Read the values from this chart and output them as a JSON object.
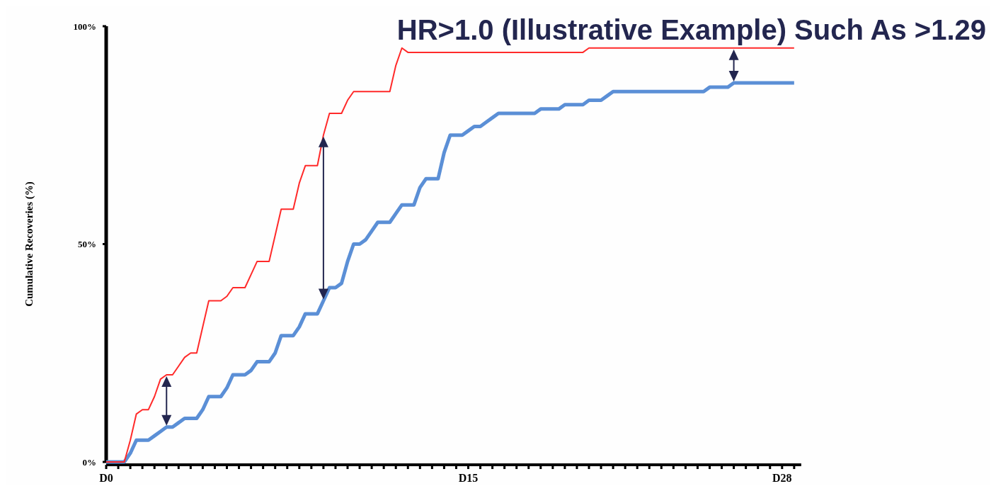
{
  "chart_data": {
    "type": "line",
    "title": "HR>1.0 (Illustrative Example) Such As >1.29",
    "ylabel": "Cumulative Recoveries (%)",
    "categories": [
      "D0",
      null,
      null,
      null,
      null,
      null,
      null,
      null,
      null,
      null,
      null,
      null,
      null,
      null,
      null,
      null,
      null,
      null,
      null,
      null,
      null,
      null,
      null,
      null,
      null,
      null,
      null,
      null,
      null,
      null,
      null,
      null,
      null,
      null,
      null,
      null,
      null,
      null,
      null,
      null,
      null,
      null,
      null,
      null,
      null,
      null,
      null,
      null,
      null,
      null,
      null,
      null,
      null,
      null,
      null,
      null,
      null,
      null,
      null,
      null,
      "D15",
      null,
      null,
      null,
      null,
      null,
      null,
      null,
      null,
      null,
      null,
      null,
      null,
      null,
      null,
      null,
      null,
      null,
      null,
      null,
      null,
      null,
      null,
      null,
      null,
      null,
      null,
      null,
      null,
      null,
      null,
      null,
      null,
      null,
      null,
      null,
      null,
      null,
      null,
      null,
      null,
      null,
      null,
      null,
      null,
      null,
      null,
      null,
      null,
      null,
      null,
      null,
      "D28",
      null,
      null
    ],
    "ylim": [
      0,
      100
    ],
    "yticks": [
      {
        "value": 0,
        "label": "0%"
      },
      {
        "value": 50,
        "label": "50%"
      },
      {
        "value": 100,
        "label": "100%"
      }
    ],
    "grid": false,
    "marker": "none",
    "line_style": "solid",
    "series": [
      {
        "color": "#ff2a2a",
        "values": [
          0,
          0,
          0,
          0,
          5,
          11,
          12,
          12,
          15,
          19,
          20,
          20,
          22,
          24,
          25,
          25,
          31,
          37,
          37,
          37,
          38,
          40,
          40,
          40,
          43,
          46,
          46,
          46,
          52,
          58,
          58,
          58,
          64,
          68,
          68,
          68,
          75,
          80,
          80,
          80,
          83,
          85,
          85,
          85,
          85,
          85,
          85,
          85,
          91,
          95,
          94,
          94,
          94,
          94,
          94,
          94,
          94,
          94,
          94,
          94,
          94,
          94,
          94,
          94,
          94,
          94,
          94,
          94,
          94,
          94,
          94,
          94,
          94,
          94,
          94,
          94,
          94,
          94,
          94,
          94,
          95,
          95,
          95,
          95,
          95,
          95,
          95,
          95,
          95,
          95,
          95,
          95,
          95,
          95,
          95,
          95,
          95,
          95,
          95,
          95,
          95,
          95,
          95,
          95,
          95,
          95,
          95,
          95,
          95,
          95,
          95,
          95,
          95,
          95,
          95
        ]
      },
      {
        "color": "#5b8fd6",
        "values": [
          0,
          0,
          0,
          0,
          2,
          5,
          5,
          5,
          6,
          7,
          8,
          8,
          9,
          10,
          10,
          10,
          12,
          15,
          15,
          15,
          17,
          20,
          20,
          20,
          21,
          23,
          23,
          23,
          25,
          29,
          29,
          29,
          31,
          34,
          34,
          34,
          37,
          40,
          40,
          41,
          46,
          50,
          50,
          51,
          53,
          55,
          55,
          55,
          57,
          59,
          59,
          59,
          63,
          65,
          65,
          65,
          71,
          75,
          75,
          75,
          76,
          77,
          77,
          78,
          79,
          80,
          80,
          80,
          80,
          80,
          80,
          80,
          81,
          81,
          81,
          81,
          82,
          82,
          82,
          82,
          83,
          83,
          83,
          84,
          85,
          85,
          85,
          85,
          85,
          85,
          85,
          85,
          85,
          85,
          85,
          85,
          85,
          85,
          85,
          85,
          86,
          86,
          86,
          86,
          87,
          87,
          87,
          87,
          87,
          87,
          87,
          87,
          87,
          87,
          87
        ]
      }
    ]
  }
}
